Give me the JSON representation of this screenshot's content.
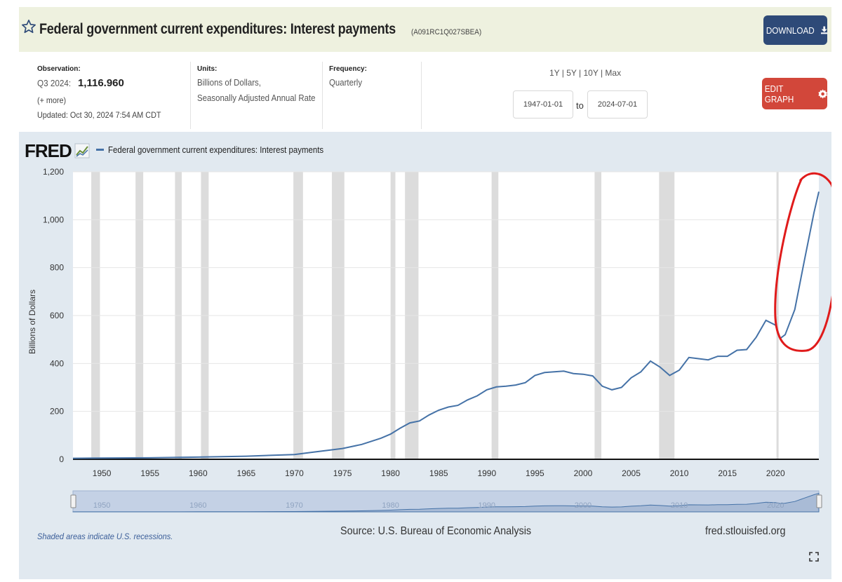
{
  "header": {
    "title": "Federal government current expenditures: Interest payments",
    "series_id": "(A091RC1Q027SBEA)",
    "download_label": "DOWNLOAD",
    "background_color": "#eef1df",
    "download_color": "#2e4a78"
  },
  "meta": {
    "observation_label": "Observation:",
    "observation_period": "Q3 2024:",
    "observation_value": "1,116.960",
    "more_link": "(+ more)",
    "updated": "Updated: Oct 30, 2024 7:54 AM CDT",
    "units_label": "Units:",
    "units_line1": "Billions of Dollars,",
    "units_line2": "Seasonally Adjusted Annual Rate",
    "frequency_label": "Frequency:",
    "frequency_value": "Quarterly"
  },
  "controls": {
    "range_links": "1Y | 5Y | 10Y | Max",
    "start_date": "1947-01-01",
    "to_label": "to",
    "end_date": "2024-07-01",
    "edit_label": "EDIT GRAPH",
    "edit_color": "#d2473a"
  },
  "footer": {
    "shaded_note": "Shaded areas indicate U.S. recessions.",
    "source": "Source: U.S. Bureau of Economic Analysis",
    "site": "fred.stlouisfed.org"
  },
  "logo_text": "FRED",
  "chart_data": {
    "type": "line",
    "title": "",
    "ylabel": "Billions of Dollars",
    "xlabel": "",
    "ylim": [
      0,
      1200
    ],
    "xlim": [
      1947.0,
      2024.5
    ],
    "yticks": [
      0,
      200,
      400,
      600,
      800,
      1000,
      1200
    ],
    "ytick_labels": [
      "0",
      "200",
      "400",
      "600",
      "800",
      "1,000",
      "1,200"
    ],
    "xticks": [
      1950,
      1955,
      1960,
      1965,
      1970,
      1975,
      1980,
      1985,
      1990,
      1995,
      2000,
      2005,
      2010,
      2015,
      2020
    ],
    "xtick_labels": [
      "1950",
      "1955",
      "1960",
      "1965",
      "1970",
      "1975",
      "1980",
      "1985",
      "1990",
      "1995",
      "2000",
      "2005",
      "2010",
      "2015",
      "2020"
    ],
    "grid": true,
    "legend_position": "top-left",
    "series": [
      {
        "name": "Federal government current expenditures: Interest payments",
        "color": "#4572a7",
        "x": [
          1947.0,
          1950,
          1955,
          1960,
          1965,
          1970,
          1972,
          1975,
          1977,
          1979,
          1980,
          1981,
          1982,
          1983,
          1984,
          1985,
          1986,
          1987,
          1988,
          1989,
          1990,
          1991,
          1992,
          1993,
          1994,
          1995,
          1996,
          1997,
          1998,
          1999,
          2000,
          2001,
          2002,
          2003,
          2004,
          2005,
          2006,
          2007,
          2008,
          2009,
          2010,
          2011,
          2012,
          2013,
          2014,
          2015,
          2016,
          2017,
          2018,
          2019,
          2020,
          2020.5,
          2021,
          2022,
          2023,
          2024,
          2024.5
        ],
        "y": [
          4,
          5,
          6,
          9,
          13,
          20,
          30,
          45,
          62,
          88,
          105,
          130,
          152,
          160,
          185,
          205,
          218,
          225,
          248,
          265,
          290,
          302,
          305,
          310,
          320,
          350,
          362,
          365,
          368,
          358,
          355,
          348,
          305,
          290,
          300,
          340,
          365,
          410,
          385,
          350,
          372,
          425,
          420,
          415,
          430,
          430,
          455,
          458,
          510,
          580,
          560,
          505,
          520,
          625,
          830,
          1030,
          1117
        ]
      }
    ],
    "recessions": [
      [
        1948.9,
        1949.8
      ],
      [
        1953.5,
        1954.3
      ],
      [
        1957.6,
        1958.3
      ],
      [
        1960.3,
        1961.1
      ],
      [
        1969.9,
        1970.9
      ],
      [
        1973.9,
        1975.2
      ],
      [
        1980.0,
        1980.5
      ],
      [
        1981.5,
        1982.9
      ],
      [
        1990.5,
        1991.2
      ],
      [
        2001.2,
        2001.9
      ],
      [
        2007.9,
        2009.5
      ],
      [
        2020.1,
        2020.3
      ]
    ],
    "navigator": {
      "labels": [
        "1950",
        "1960",
        "1970",
        "1980",
        "1990",
        "2000",
        "2010",
        "2020"
      ]
    }
  },
  "annotation": {
    "type": "hand-drawn circle",
    "color": "#e01b1b"
  }
}
